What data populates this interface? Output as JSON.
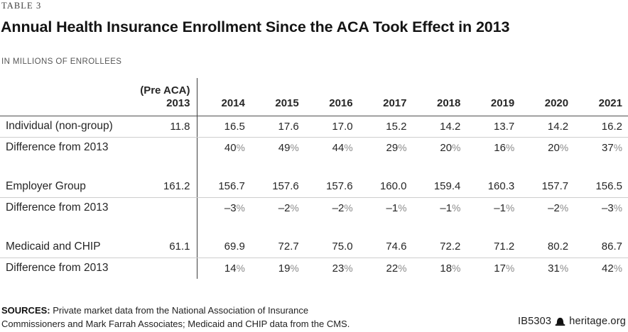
{
  "header": {
    "table_tag": "TABLE 3",
    "title": "Annual Health Insurance Enrollment Since the ACA Took Effect in 2013",
    "subtitle": "IN MILLIONS OF ENROLLEES"
  },
  "table": {
    "columns": {
      "pre_aca_line1": "(Pre ACA)",
      "pre_aca_line2": "2013",
      "years": [
        "2014",
        "2015",
        "2016",
        "2017",
        "2018",
        "2019",
        "2020",
        "2021"
      ]
    },
    "rows": [
      {
        "label": "Individual (non-group)",
        "baseline": "11.8",
        "values": [
          "16.5",
          "17.6",
          "17.0",
          "15.2",
          "14.2",
          "13.7",
          "14.2",
          "16.2"
        ]
      },
      {
        "label": "Difference from 2013",
        "baseline": "",
        "values": [
          "40%",
          "49%",
          "44%",
          "29%",
          "20%",
          "16%",
          "20%",
          "37%"
        ]
      },
      {
        "label": "Employer Group",
        "baseline": "161.2",
        "values": [
          "156.7",
          "157.6",
          "157.6",
          "160.0",
          "159.4",
          "160.3",
          "157.7",
          "156.5"
        ]
      },
      {
        "label": "Difference from 2013",
        "baseline": "",
        "values": [
          "–3%",
          "–2%",
          "–2%",
          "–1%",
          "–1%",
          "–1%",
          "–2%",
          "–3%"
        ]
      },
      {
        "label": "Medicaid and CHIP",
        "baseline": "61.1",
        "values": [
          "69.9",
          "72.7",
          "75.0",
          "74.6",
          "72.2",
          "71.2",
          "80.2",
          "86.7"
        ]
      },
      {
        "label": "Difference from 2013",
        "baseline": "",
        "values": [
          "14%",
          "19%",
          "23%",
          "22%",
          "18%",
          "17%",
          "31%",
          "42%"
        ]
      }
    ]
  },
  "chart_data": {
    "type": "table",
    "title": "Annual Health Insurance Enrollment Since the ACA Took Effect in 2013",
    "unit": "millions of enrollees",
    "columns": [
      "(Pre ACA) 2013",
      "2014",
      "2015",
      "2016",
      "2017",
      "2018",
      "2019",
      "2020",
      "2021"
    ],
    "series": [
      {
        "name": "Individual (non-group)",
        "values": [
          11.8,
          16.5,
          17.6,
          17.0,
          15.2,
          14.2,
          13.7,
          14.2,
          16.2
        ]
      },
      {
        "name": "Individual difference from 2013 (%)",
        "values": [
          null,
          40,
          49,
          44,
          29,
          20,
          16,
          20,
          37
        ]
      },
      {
        "name": "Employer Group",
        "values": [
          161.2,
          156.7,
          157.6,
          157.6,
          160.0,
          159.4,
          160.3,
          157.7,
          156.5
        ]
      },
      {
        "name": "Employer Group difference from 2013 (%)",
        "values": [
          null,
          -3,
          -2,
          -2,
          -1,
          -1,
          -1,
          -2,
          -3
        ]
      },
      {
        "name": "Medicaid and CHIP",
        "values": [
          61.1,
          69.9,
          72.7,
          75.0,
          74.6,
          72.2,
          71.2,
          80.2,
          86.7
        ]
      },
      {
        "name": "Medicaid and CHIP difference from 2013 (%)",
        "values": [
          null,
          14,
          19,
          23,
          22,
          18,
          17,
          31,
          42
        ]
      }
    ]
  },
  "footer": {
    "sources_label": "SOURCES:",
    "sources_text": " Private market data from the National Association of Insurance Commissioners and Mark Farrah Associates; Medicaid and CHIP data from the CMS.",
    "doc_id": "IB5303",
    "site": "heritage.org"
  },
  "colors": {
    "header_rule": "#4e4e4e",
    "row_rule": "#cdcdcd",
    "column_divider": "#3e3e3e",
    "text": "#262626"
  }
}
